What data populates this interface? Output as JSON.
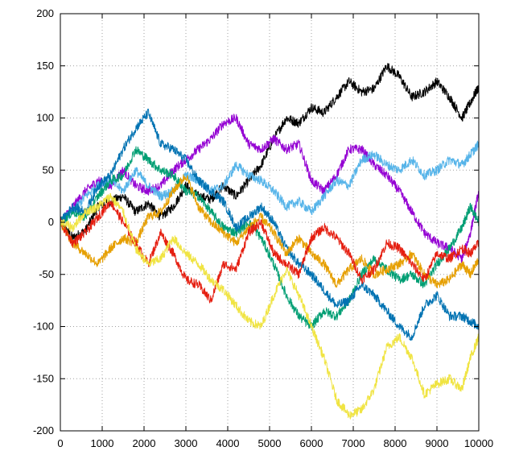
{
  "chart_data": {
    "type": "line",
    "title": "",
    "xlabel": "",
    "ylabel": "",
    "xlim": [
      0,
      10000
    ],
    "ylim": [
      -200,
      200
    ],
    "x_ticks": [
      0,
      1000,
      2000,
      3000,
      4000,
      5000,
      6000,
      7000,
      8000,
      9000,
      10000
    ],
    "y_ticks": [
      -200,
      -150,
      -100,
      -50,
      0,
      50,
      100,
      150,
      200
    ],
    "x_tick_labels": [
      "0",
      "1000",
      "2000",
      "3000",
      "4000",
      "5000",
      "6000",
      "7000",
      "8000",
      "9000",
      "10000"
    ],
    "y_tick_labels": [
      "-200",
      "-150",
      "-100",
      "-50",
      "0",
      "50",
      "100",
      "150",
      "200"
    ],
    "grid": true,
    "legend": "none",
    "series": [
      {
        "color": "#000000",
        "x": [
          0,
          300,
          600,
          900,
          1200,
          1500,
          1800,
          2100,
          2400,
          2700,
          3000,
          3300,
          3600,
          3900,
          4200,
          4500,
          4800,
          5100,
          5400,
          5700,
          6000,
          6300,
          6600,
          6900,
          7200,
          7500,
          7800,
          8100,
          8400,
          8700,
          9000,
          9300,
          9600,
          9800,
          10000
        ],
        "y": [
          0,
          -15,
          -8,
          15,
          20,
          25,
          10,
          18,
          5,
          15,
          35,
          25,
          22,
          35,
          25,
          40,
          55,
          80,
          100,
          95,
          110,
          105,
          120,
          135,
          125,
          128,
          150,
          140,
          120,
          125,
          135,
          120,
          100,
          115,
          130
        ]
      },
      {
        "color": "#9400d3",
        "x": [
          0,
          300,
          600,
          900,
          1200,
          1500,
          1800,
          2100,
          2400,
          2700,
          3000,
          3300,
          3600,
          3900,
          4200,
          4500,
          4800,
          5100,
          5400,
          5700,
          6000,
          6300,
          6600,
          6900,
          7200,
          7500,
          7800,
          8100,
          8400,
          8700,
          9000,
          9300,
          9600,
          9800,
          10000
        ],
        "y": [
          0,
          15,
          30,
          40,
          35,
          50,
          35,
          30,
          35,
          50,
          60,
          70,
          80,
          95,
          100,
          75,
          70,
          80,
          70,
          75,
          40,
          30,
          45,
          70,
          70,
          55,
          45,
          30,
          10,
          -10,
          -20,
          -25,
          -35,
          -10,
          30
        ]
      },
      {
        "color": "#56b4e9",
        "x": [
          0,
          300,
          600,
          900,
          1200,
          1500,
          1800,
          2100,
          2400,
          2700,
          3000,
          3300,
          3600,
          3900,
          4200,
          4500,
          4800,
          5100,
          5400,
          5700,
          6000,
          6300,
          6600,
          6900,
          7200,
          7500,
          7800,
          8100,
          8400,
          8700,
          9000,
          9300,
          9600,
          9800,
          10000
        ],
        "y": [
          0,
          10,
          25,
          35,
          40,
          30,
          50,
          35,
          25,
          30,
          45,
          40,
          30,
          35,
          55,
          45,
          40,
          30,
          15,
          20,
          10,
          25,
          40,
          35,
          60,
          65,
          55,
          50,
          60,
          45,
          50,
          60,
          55,
          65,
          75
        ]
      },
      {
        "color": "#009e73",
        "x": [
          0,
          300,
          600,
          900,
          1200,
          1500,
          1800,
          2100,
          2400,
          2700,
          3000,
          3300,
          3600,
          3900,
          4200,
          4500,
          4800,
          5100,
          5400,
          5700,
          6000,
          6300,
          6600,
          6900,
          7200,
          7500,
          7800,
          8100,
          8400,
          8700,
          9000,
          9300,
          9600,
          9800,
          10000
        ],
        "y": [
          0,
          10,
          5,
          25,
          40,
          45,
          70,
          60,
          50,
          45,
          30,
          25,
          10,
          -5,
          -10,
          0,
          -15,
          -40,
          -70,
          -90,
          -100,
          -85,
          -90,
          -75,
          -50,
          -35,
          -45,
          -55,
          -50,
          -60,
          -40,
          -25,
          -5,
          15,
          0
        ]
      },
      {
        "color": "#0072b2",
        "x": [
          0,
          300,
          600,
          900,
          1200,
          1500,
          1800,
          2100,
          2400,
          2700,
          3000,
          3300,
          3600,
          3900,
          4200,
          4500,
          4800,
          5100,
          5400,
          5700,
          6000,
          6300,
          6600,
          6900,
          7200,
          7500,
          7800,
          8100,
          8400,
          8700,
          9000,
          9300,
          9600,
          9800,
          10000
        ],
        "y": [
          0,
          15,
          10,
          35,
          45,
          70,
          90,
          105,
          75,
          70,
          60,
          40,
          30,
          20,
          -5,
          5,
          15,
          0,
          -25,
          -40,
          -50,
          -65,
          -80,
          -75,
          -60,
          -70,
          -85,
          -100,
          -110,
          -80,
          -70,
          -90,
          -90,
          -95,
          -100
        ]
      },
      {
        "color": "#e69f00",
        "x": [
          0,
          300,
          600,
          900,
          1200,
          1500,
          1800,
          2100,
          2400,
          2700,
          3000,
          3300,
          3600,
          3900,
          4200,
          4500,
          4800,
          5100,
          5400,
          5700,
          6000,
          6300,
          6600,
          6900,
          7200,
          7500,
          7800,
          8100,
          8400,
          8700,
          9000,
          9300,
          9600,
          9800,
          10000
        ],
        "y": [
          0,
          -20,
          -30,
          -40,
          -25,
          -15,
          -20,
          5,
          10,
          30,
          45,
          15,
          0,
          -10,
          -20,
          -5,
          5,
          -10,
          -30,
          -15,
          -30,
          -40,
          -60,
          -45,
          -35,
          -50,
          -45,
          -40,
          -30,
          -50,
          -60,
          -55,
          -40,
          -50,
          -35
        ]
      },
      {
        "color": "#e51e10",
        "x": [
          0,
          300,
          600,
          900,
          1200,
          1500,
          1800,
          2100,
          2400,
          2700,
          3000,
          3300,
          3600,
          3900,
          4200,
          4500,
          4800,
          5100,
          5400,
          5700,
          6000,
          6300,
          6600,
          6900,
          7200,
          7500,
          7800,
          8100,
          8400,
          8700,
          9000,
          9300,
          9600,
          9800,
          10000
        ],
        "y": [
          0,
          -20,
          -10,
          5,
          20,
          0,
          -20,
          -40,
          -10,
          -30,
          -55,
          -60,
          -75,
          -40,
          -45,
          -10,
          0,
          -30,
          -40,
          -50,
          -15,
          -5,
          -15,
          -30,
          -55,
          -45,
          -20,
          -25,
          -40,
          -55,
          -30,
          -35,
          -25,
          -30,
          -20
        ]
      },
      {
        "color": "#f0e442",
        "x": [
          0,
          300,
          600,
          900,
          1200,
          1500,
          1800,
          2100,
          2400,
          2700,
          3000,
          3300,
          3600,
          3900,
          4200,
          4500,
          4800,
          5100,
          5400,
          5700,
          6000,
          6300,
          6600,
          6900,
          7200,
          7500,
          7800,
          8100,
          8400,
          8700,
          9000,
          9300,
          9600,
          9800,
          10000
        ],
        "y": [
          0,
          -5,
          10,
          15,
          25,
          10,
          -25,
          -40,
          -35,
          -15,
          -30,
          -40,
          -55,
          -65,
          -80,
          -95,
          -100,
          -70,
          -45,
          -70,
          -100,
          -130,
          -170,
          -185,
          -180,
          -160,
          -120,
          -110,
          -130,
          -165,
          -155,
          -150,
          -160,
          -130,
          -110
        ]
      }
    ]
  }
}
